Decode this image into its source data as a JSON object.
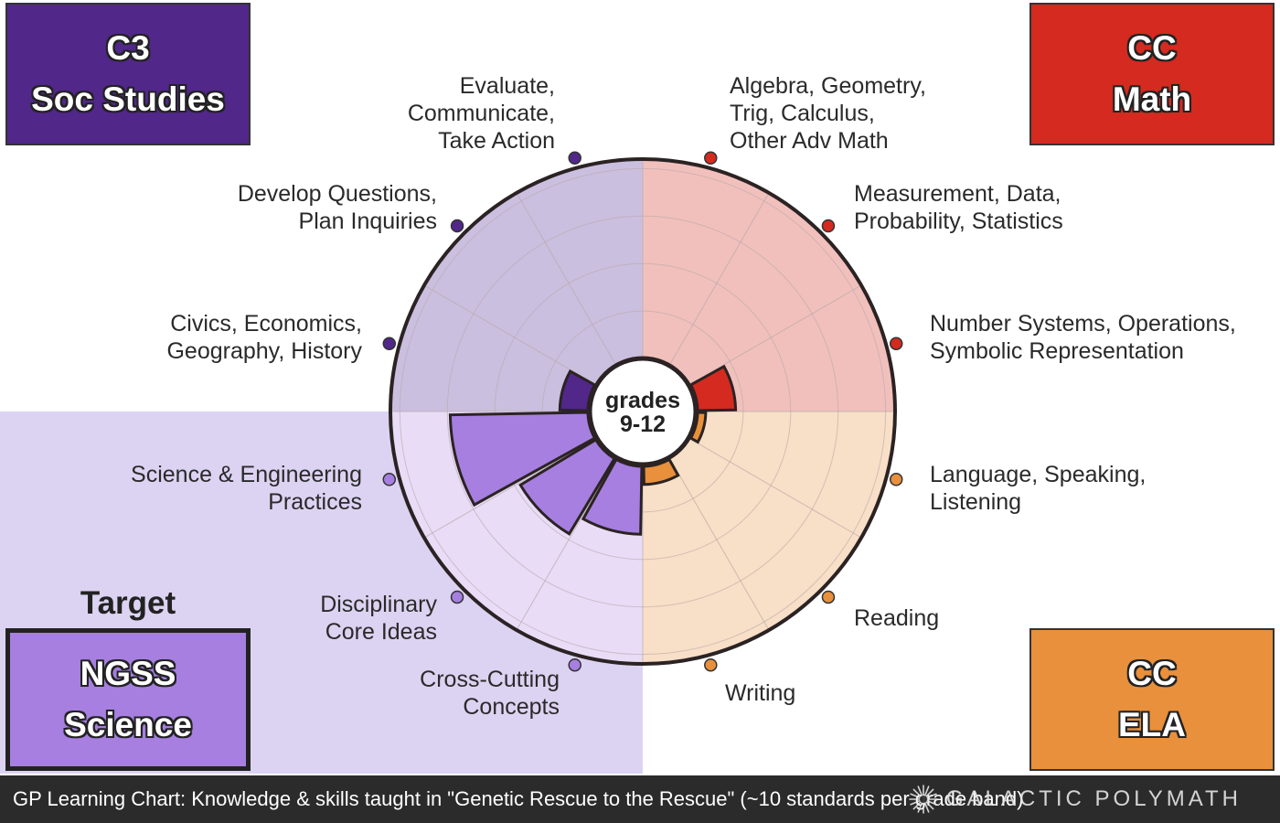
{
  "chart_data": {
    "type": "polar-bar",
    "center_label": [
      "grades",
      "9-12"
    ],
    "max_value": 10,
    "target_subject": "science",
    "subjects": [
      {
        "id": "math",
        "box_lines": [
          "CC",
          "Math"
        ],
        "color": "#d42a20",
        "bg_color": "#f1c0bd",
        "categories": [
          {
            "id": "math-algebra",
            "lines": [
              "Algebra, Geometry,",
              "Trig, Calculus,",
              "Other Adv Math"
            ],
            "value": 0
          },
          {
            "id": "math-measurement",
            "lines": [
              "Measurement, Data,",
              "Probability, Statistics"
            ],
            "value": 0
          },
          {
            "id": "math-number",
            "lines": [
              "Number Systems, Operations,",
              "Symbolic Representation"
            ],
            "value": 2
          }
        ]
      },
      {
        "id": "ela",
        "box_lines": [
          "CC",
          "ELA"
        ],
        "color": "#e8903b",
        "bg_color": "#f8dfc7",
        "categories": [
          {
            "id": "ela-language",
            "lines": [
              "Language, Speaking,",
              "Listening"
            ],
            "value": 0.5
          },
          {
            "id": "ela-reading",
            "lines": [
              "Reading"
            ],
            "value": 0
          },
          {
            "id": "ela-writing",
            "lines": [
              "Writing"
            ],
            "value": 1
          }
        ]
      },
      {
        "id": "science",
        "box_lines": [
          "NGSS",
          "Science"
        ],
        "color": "#a67fe1",
        "bg_color": "#e8dcf7",
        "categories": [
          {
            "id": "sci-cross",
            "lines": [
              "Cross-Cutting",
              "Concepts"
            ],
            "value": 3.5
          },
          {
            "id": "sci-core",
            "lines": [
              "Disciplinary",
              "Core Ideas"
            ],
            "value": 4.5
          },
          {
            "id": "sci-practices",
            "lines": [
              "Science & Engineering",
              "Practices"
            ],
            "value": 7
          }
        ]
      },
      {
        "id": "soc",
        "box_lines": [
          "C3",
          "Soc Studies"
        ],
        "color": "#51278a",
        "bg_color": "#cbbfe0",
        "categories": [
          {
            "id": "soc-civics",
            "lines": [
              "Civics, Economics,",
              "Geography, History"
            ],
            "value": 1.5
          },
          {
            "id": "soc-develop",
            "lines": [
              "Develop Questions,",
              "Plan Inquiries"
            ],
            "value": 0
          },
          {
            "id": "soc-evaluate",
            "lines": [
              "Evaluate,",
              "Communicate,",
              "Take Action"
            ],
            "value": 0
          }
        ]
      }
    ]
  },
  "target_label": "Target",
  "footer_text": "GP Learning Chart: Knowledge & skills taught in \"Genetic Rescue to the Rescue\" (~10 standards per grade band)",
  "brand": "GALACTIC POLYMATH"
}
